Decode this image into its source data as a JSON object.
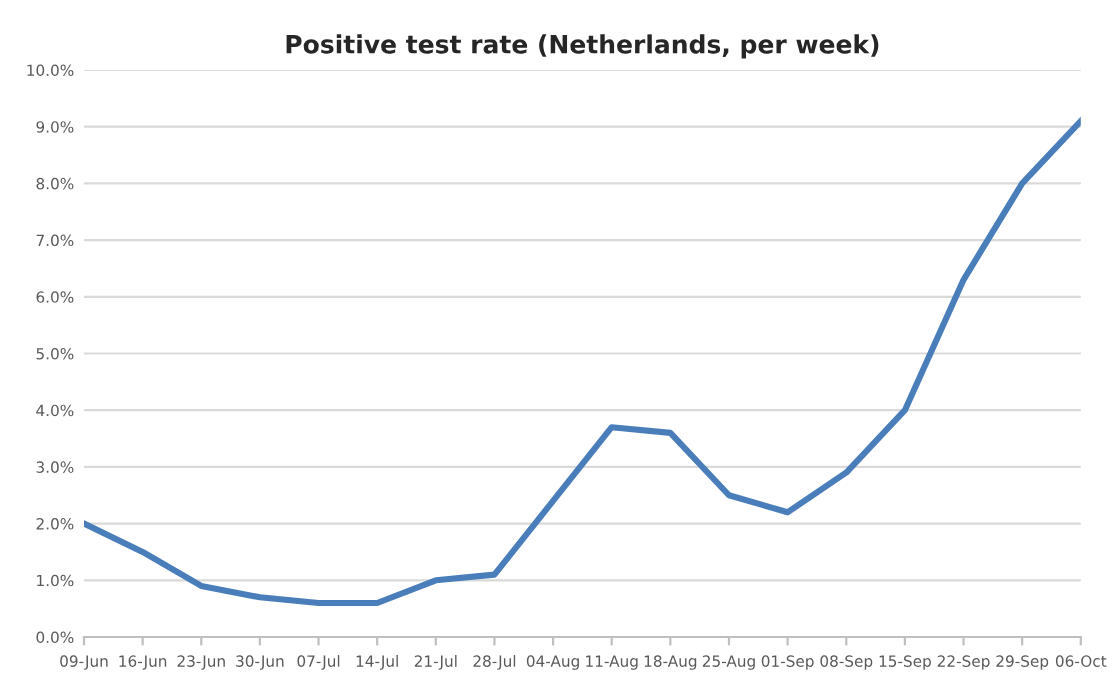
{
  "chart_data": {
    "type": "line",
    "title": "Positive test rate (Netherlands, per week)",
    "categories": [
      "09-Jun",
      "16-Jun",
      "23-Jun",
      "30-Jun",
      "07-Jul",
      "14-Jul",
      "21-Jul",
      "28-Jul",
      "04-Aug",
      "11-Aug",
      "18-Aug",
      "25-Aug",
      "01-Sep",
      "08-Sep",
      "15-Sep",
      "22-Sep",
      "29-Sep",
      "06-Oct"
    ],
    "series": [
      {
        "color": "#4a7ebb",
        "values": [
          2.0,
          1.5,
          0.9,
          0.7,
          0.6,
          0.6,
          1.0,
          1.1,
          2.4,
          3.7,
          3.6,
          2.5,
          2.2,
          2.9,
          4.0,
          6.3,
          8.0,
          9.1
        ]
      }
    ],
    "ylim": [
      0,
      10
    ],
    "yticks": [
      {
        "value": 0,
        "label": "0.0%"
      },
      {
        "value": 1,
        "label": "1.0%"
      },
      {
        "value": 2,
        "label": "2.0%"
      },
      {
        "value": 3,
        "label": "3.0%"
      },
      {
        "value": 4,
        "label": "4.0%"
      },
      {
        "value": 5,
        "label": "5.0%"
      },
      {
        "value": 6,
        "label": "6.0%"
      },
      {
        "value": 7,
        "label": "7.0%"
      },
      {
        "value": 8,
        "label": "8.0%"
      },
      {
        "value": 9,
        "label": "9.0%"
      },
      {
        "value": 10,
        "label": "10.0%"
      }
    ],
    "grid": "y",
    "marker": "none",
    "line_style": "solid"
  }
}
